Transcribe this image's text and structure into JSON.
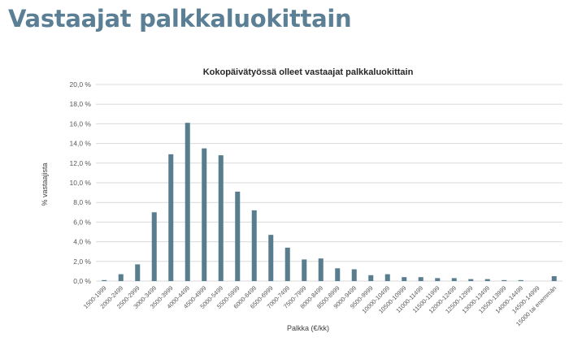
{
  "slide": {
    "title": "Vastaajat palkkaluokittain"
  },
  "colors": {
    "bar": "#577d8e",
    "grid": "#d9d9d9",
    "title": "#5b7f95",
    "text": "#595959"
  },
  "chart_data": {
    "type": "bar",
    "title": "Kokopäivätyössä olleet vastaajat palkkaluokittain",
    "xlabel": "Palkka (€/kk)",
    "ylabel": "% vastaajista",
    "ylim": [
      0,
      20
    ],
    "yticks": [
      "0,0 %",
      "2,0 %",
      "4,0 %",
      "6,0 %",
      "8,0 %",
      "10,0 %",
      "12,0 %",
      "14,0 %",
      "16,0 %",
      "18,0 %",
      "20,0 %"
    ],
    "grid": true,
    "legend": "none",
    "categories": [
      "1500-1999",
      "2000-2499",
      "2500-2999",
      "3000-3499",
      "3500-3999",
      "4000-4499",
      "4500-4999",
      "5000-5499",
      "5500-5999",
      "6000-6499",
      "6500-6999",
      "7000-7499",
      "7500-7999",
      "8000-8499",
      "8500-8999",
      "9000-9499",
      "9500-9999",
      "10000-10499",
      "10500-10999",
      "11000-11499",
      "11500-11999",
      "12000-12499",
      "12500-12999",
      "13000-13499",
      "13500-13999",
      "14000-14499",
      "14500-14999",
      "15000 tai enemmän"
    ],
    "values": [
      0.1,
      0.7,
      1.7,
      7.0,
      12.9,
      16.1,
      13.5,
      12.8,
      9.1,
      7.2,
      4.7,
      3.4,
      2.2,
      2.3,
      1.3,
      1.2,
      0.6,
      0.7,
      0.4,
      0.4,
      0.3,
      0.3,
      0.2,
      0.2,
      0.1,
      0.1,
      0.0,
      0.5
    ]
  }
}
